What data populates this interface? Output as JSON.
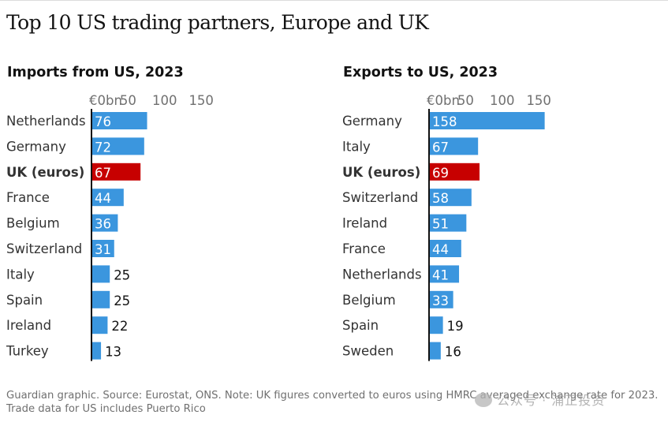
{
  "title": "Top 10 US trading partners, Europe and UK",
  "footer": "Guardian graphic. Source: Eurostat, ONS. Note: UK figures converted to euros using HMRC averaged exchange rate for 2023. Trade data for US includes Puerto Rico",
  "watermark": "公众号 · 浦正投资",
  "colors": {
    "bar": "#3b96de",
    "highlight": "#c70000",
    "axis": "#121212",
    "text": "#121212",
    "muted": "#707070"
  },
  "chart_data": [
    {
      "type": "bar",
      "orientation": "horizontal",
      "title": "Imports from US, 2023",
      "categories": [
        "Netherlands",
        "Germany",
        "UK (euros)",
        "France",
        "Belgium",
        "Switzerland",
        "Italy",
        "Spain",
        "Ireland",
        "Turkey"
      ],
      "values": [
        76,
        72,
        67,
        44,
        36,
        31,
        25,
        25,
        22,
        13
      ],
      "value_labels": [
        "76",
        "72",
        "67",
        "44",
        "36",
        "31",
        "25",
        "25",
        "22",
        "13"
      ],
      "highlight": "UK (euros)",
      "xlim": [
        0,
        150
      ],
      "ticks": [
        0,
        50,
        100,
        150
      ],
      "tick_labels": [
        "€0bn",
        "50",
        "100",
        "150"
      ]
    },
    {
      "type": "bar",
      "orientation": "horizontal",
      "title": "Exports to US, 2023",
      "categories": [
        "Germany",
        "Italy",
        "UK (euros)",
        "Switzerland",
        "Ireland",
        "France",
        "Netherlands",
        "Belgium",
        "Spain",
        "Sweden"
      ],
      "values": [
        158,
        67,
        69,
        58,
        51,
        44,
        41,
        33,
        19,
        16
      ],
      "value_labels": [
        "158",
        "67",
        "69",
        "58",
        "51",
        "44",
        "41",
        "33",
        "19",
        "16"
      ],
      "highlight": "UK (euros)",
      "xlim": [
        0,
        150
      ],
      "ticks": [
        0,
        50,
        100,
        150
      ],
      "tick_labels": [
        "€0bn",
        "50",
        "100",
        "150"
      ]
    }
  ]
}
